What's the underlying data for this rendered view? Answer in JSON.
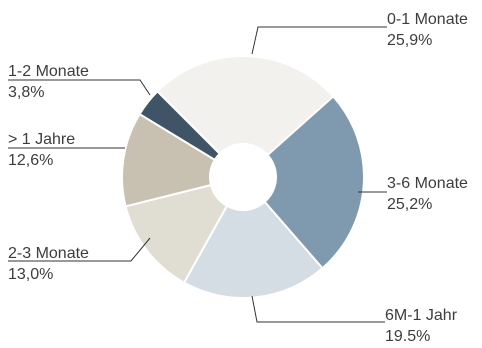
{
  "chart_data": {
    "type": "pie",
    "donut": true,
    "title": "",
    "categories": [
      "0-1 Monate",
      "3-6 Monate",
      "6M-1 Jahr",
      "2-3 Monate",
      "> 1 Jahre",
      "1-2 Monate"
    ],
    "values": [
      25.9,
      25.2,
      19.5,
      13.0,
      12.6,
      3.8
    ],
    "value_labels": [
      "25,9%",
      "25,2%",
      "19.5%",
      "13,0%",
      "12,6%",
      "3,8%"
    ],
    "colors": [
      "#f2f1ee",
      "#7f99ae",
      "#d5dde4",
      "#e0ddd2",
      "#c8c0b0",
      "#3f5466"
    ],
    "legend": "callout-labels"
  }
}
